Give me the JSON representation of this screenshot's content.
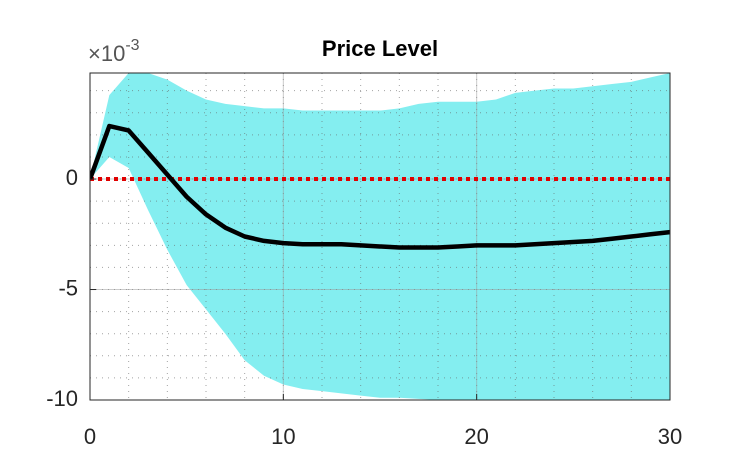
{
  "chart_data": {
    "type": "line",
    "title": "Price Level",
    "y_exponent": {
      "base": "×10",
      "power": "-3"
    },
    "x": [
      0,
      1,
      2,
      3,
      4,
      5,
      6,
      7,
      8,
      9,
      10,
      11,
      12,
      13,
      14,
      15,
      16,
      17,
      18,
      19,
      20,
      21,
      22,
      23,
      24,
      25,
      26,
      27,
      28,
      29,
      30
    ],
    "series": [
      {
        "color": "#000000",
        "values": [
          0,
          2.4,
          2.2,
          1.2,
          0.2,
          -0.8,
          -1.6,
          -2.2,
          -2.6,
          -2.8,
          -2.9,
          -2.95,
          -2.95,
          -2.95,
          -3.0,
          -3.05,
          -3.1,
          -3.1,
          -3.1,
          -3.05,
          -3.0,
          -3.0,
          -3.0,
          -2.95,
          -2.9,
          -2.85,
          -2.8,
          -2.7,
          -2.6,
          -2.5,
          -2.4
        ]
      }
    ],
    "band": {
      "color": "#84eef0",
      "upper": [
        0,
        3.8,
        4.8,
        4.8,
        4.5,
        4.0,
        3.6,
        3.4,
        3.3,
        3.2,
        3.2,
        3.1,
        3.1,
        3.1,
        3.1,
        3.1,
        3.2,
        3.4,
        3.5,
        3.5,
        3.5,
        3.6,
        3.9,
        4.0,
        4.1,
        4.1,
        4.2,
        4.3,
        4.4,
        4.6,
        4.8
      ],
      "lower": [
        0,
        1.0,
        0.5,
        -1.4,
        -3.2,
        -4.8,
        -5.9,
        -7.0,
        -8.2,
        -8.9,
        -9.3,
        -9.5,
        -9.6,
        -9.7,
        -9.8,
        -9.9,
        -9.9,
        -9.95,
        -10,
        -10,
        -10,
        -10,
        -10,
        -10,
        -10,
        -10,
        -10,
        -10,
        -10,
        -10,
        -10
      ]
    },
    "reference_line": {
      "value": 0,
      "color": "#e00000"
    },
    "xlim": [
      0,
      30
    ],
    "xticks": [
      0,
      10,
      20,
      30
    ],
    "ylim": [
      -10,
      4.8
    ],
    "yticks": [
      -10,
      -5,
      0
    ],
    "grid": true,
    "minor_grid": true
  }
}
